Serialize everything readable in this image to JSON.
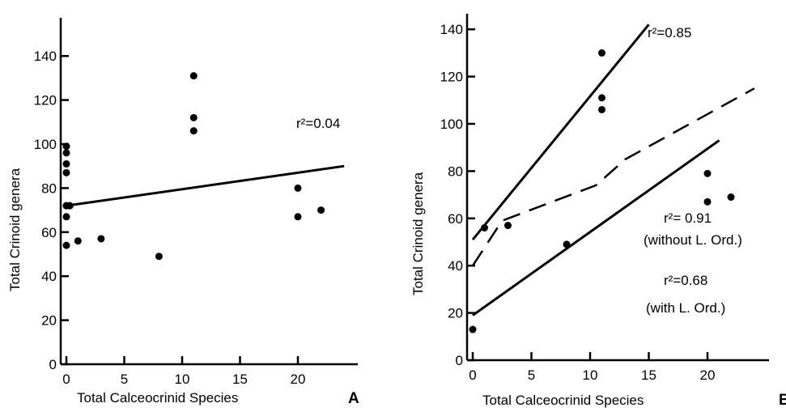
{
  "chart_data": [
    {
      "type": "scatter",
      "panel": "A",
      "xlabel": "Total Calceocrinid Species",
      "ylabel": "Total Crinoid genera",
      "xlim": [
        0,
        23
      ],
      "ylim": [
        0,
        140
      ],
      "xticks": [
        0,
        5,
        10,
        15,
        20
      ],
      "yticks": [
        0,
        20,
        40,
        60,
        80,
        100,
        120,
        140
      ],
      "points": [
        {
          "x": 0,
          "y": 99
        },
        {
          "x": 0,
          "y": 96
        },
        {
          "x": 0,
          "y": 91
        },
        {
          "x": 0,
          "y": 87
        },
        {
          "x": 0,
          "y": 72
        },
        {
          "x": 0,
          "y": 72
        },
        {
          "x": 0,
          "y": 67
        },
        {
          "x": 0,
          "y": 54
        },
        {
          "x": 0.3,
          "y": 72
        },
        {
          "x": 1,
          "y": 56
        },
        {
          "x": 3,
          "y": 57
        },
        {
          "x": 8,
          "y": 49
        },
        {
          "x": 11,
          "y": 131
        },
        {
          "x": 11,
          "y": 112
        },
        {
          "x": 11,
          "y": 106
        },
        {
          "x": 20,
          "y": 80
        },
        {
          "x": 20,
          "y": 67
        },
        {
          "x": 22,
          "y": 70
        }
      ],
      "lines": [
        {
          "style": "solid",
          "points": [
            [
              0,
              72
            ],
            [
              24,
              90
            ]
          ],
          "label": "r²=0.04"
        }
      ],
      "grid": false
    },
    {
      "type": "scatter",
      "panel": "B",
      "xlabel": "Total Calceocrinid Species",
      "ylabel": "Total Crinoid genera",
      "xlim": [
        0,
        23
      ],
      "ylim": [
        0,
        140
      ],
      "xticks": [
        0,
        5,
        10,
        15,
        20
      ],
      "yticks": [
        0,
        20,
        40,
        60,
        80,
        100,
        120,
        140
      ],
      "points": [
        {
          "x": 0,
          "y": 13
        },
        {
          "x": 1,
          "y": 56
        },
        {
          "x": 3,
          "y": 57
        },
        {
          "x": 8,
          "y": 49
        },
        {
          "x": 11,
          "y": 130
        },
        {
          "x": 11,
          "y": 111
        },
        {
          "x": 11,
          "y": 106
        },
        {
          "x": 20,
          "y": 79
        },
        {
          "x": 20,
          "y": 67
        },
        {
          "x": 22,
          "y": 69
        }
      ],
      "lines": [
        {
          "style": "solid",
          "points": [
            [
              0,
              51
            ],
            [
              15,
              142
            ]
          ],
          "label": "r²=0.85"
        },
        {
          "style": "dashed",
          "points": [
            [
              0,
              40
            ],
            [
              2.5,
              59
            ],
            [
              10.5,
              74
            ],
            [
              13,
              85
            ],
            [
              24,
              115
            ]
          ],
          "label": "r²= 0.91\n(without L. Ord.)"
        },
        {
          "style": "solid",
          "points": [
            [
              0,
              19
            ],
            [
              21,
              93
            ]
          ],
          "label": "r²=0.68\n(with L. Ord.)"
        }
      ],
      "grid": false
    }
  ],
  "panels": [
    {
      "letter": "A",
      "xlabel": "Total Calceocrinid Species",
      "ylabel": "Total Crinoid genera",
      "annotations": [
        "r²=0.04"
      ]
    },
    {
      "letter": "B",
      "xlabel": "Total Calceocrinid Species",
      "ylabel": "Total Crinoid genera",
      "annotations": [
        "r²=0.85",
        "r²= 0.91",
        "(without L. Ord.)",
        "r²=0.68",
        "(with L. Ord.)"
      ]
    }
  ]
}
